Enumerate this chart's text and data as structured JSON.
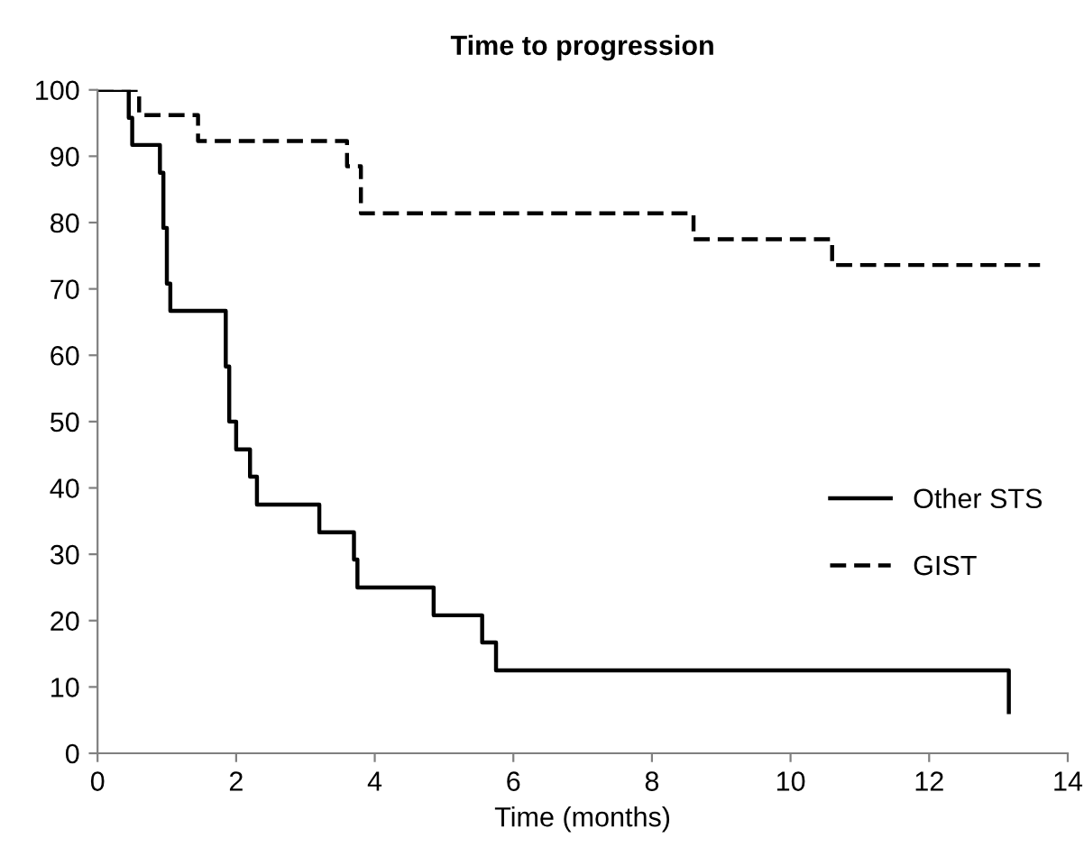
{
  "chart_data": {
    "type": "step",
    "title": "Time to progression",
    "xlabel": "Time (months)",
    "xlim": [
      0,
      14
    ],
    "xticks": [
      0,
      2,
      4,
      6,
      8,
      10,
      12,
      14
    ],
    "ylim": [
      0,
      100
    ],
    "yticks": [
      0,
      10,
      20,
      30,
      40,
      50,
      60,
      70,
      80,
      90,
      100
    ],
    "legend": "right",
    "grid": false,
    "series": [
      {
        "name": "Other STS",
        "color": "#000000",
        "line_style": "solid",
        "x": [
          0,
          0.45,
          0.5,
          0.9,
          0.95,
          1.0,
          1.05,
          1.85,
          1.9,
          2.0,
          2.2,
          2.3,
          3.2,
          3.7,
          3.75,
          4.85,
          5.55,
          5.75,
          13.15
        ],
        "values": [
          100,
          95.8,
          91.7,
          87.5,
          79.2,
          70.8,
          66.7,
          58.3,
          50,
          45.8,
          41.7,
          37.5,
          33.3,
          29.2,
          25,
          20.8,
          16.7,
          12.5,
          6.2
        ]
      },
      {
        "name": "GIST",
        "color": "#000000",
        "line_style": "dashed",
        "x": [
          0,
          0.6,
          1.45,
          3.6,
          3.8,
          8.6,
          10.6,
          13.6
        ],
        "values": [
          100,
          96.2,
          92.3,
          88.5,
          81.4,
          77.5,
          73.6,
          73.6
        ]
      }
    ]
  }
}
